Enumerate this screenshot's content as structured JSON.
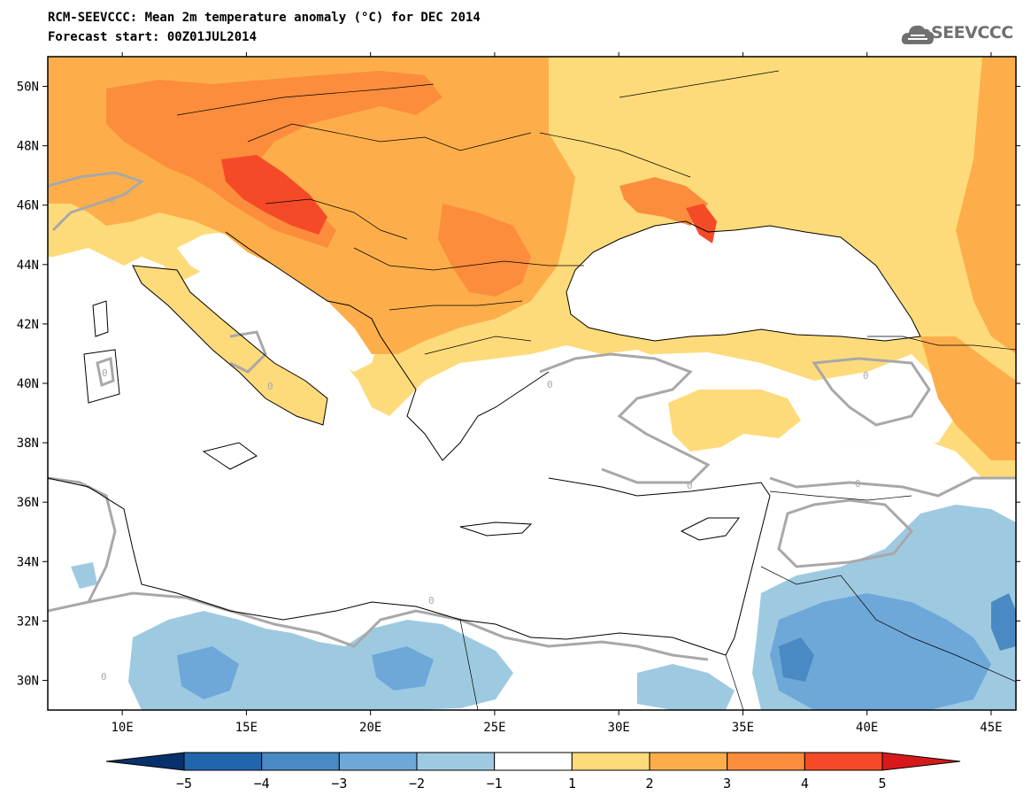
{
  "title": {
    "line1": "RCM-SEEVCCC: Mean 2m temperature anomaly (°C) for DEC 2014",
    "line2": "Forecast start: 00Z01JUL2014"
  },
  "logo": {
    "text": "SEEVCCC",
    "icon": "cloud-icon"
  },
  "map": {
    "lon_range": [
      7,
      46
    ],
    "lat_range": [
      29,
      51
    ],
    "lon_ticks": [
      "10E",
      "15E",
      "20E",
      "25E",
      "30E",
      "35E",
      "40E",
      "45E"
    ],
    "lat_ticks": [
      "50N",
      "48N",
      "46N",
      "44N",
      "42N",
      "40N",
      "38N",
      "36N",
      "34N",
      "32N",
      "30N"
    ],
    "contour_label": "0"
  },
  "colorbar": {
    "labels": [
      "-5",
      "-4",
      "-3",
      "-2",
      "-1",
      "1",
      "2",
      "3",
      "4",
      "5"
    ],
    "colors": [
      "#08306b",
      "#2166ac",
      "#4a8ac4",
      "#6ea8d8",
      "#9ecae1",
      "#ffffff",
      "#fedb7a",
      "#fdae4a",
      "#fc8d3c",
      "#f54a28",
      "#d7191c"
    ]
  },
  "palette": {
    "sea": "#ffffff",
    "land_neutral": "#ffffff",
    "warm1": "#fedb7a",
    "warm2": "#fdae4a",
    "warm3": "#fc8d3c",
    "warm4": "#f54a28",
    "cool1": "#9ecae1",
    "cool2": "#6ea8d8",
    "cool3": "#4a8ac4",
    "zero_contour": "#a8a8a8",
    "coast": "#000000"
  }
}
